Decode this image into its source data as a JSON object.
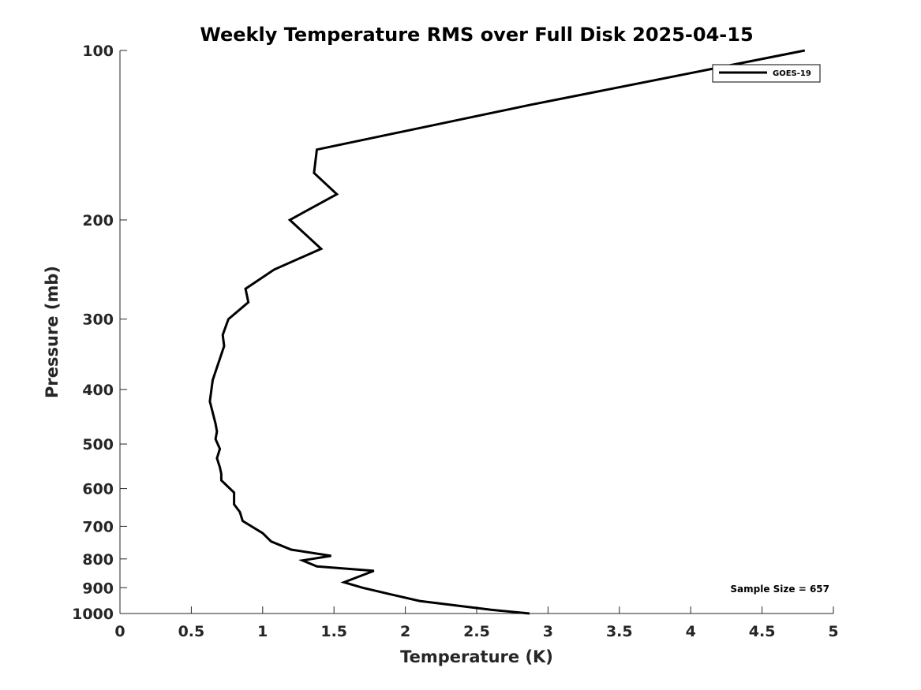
{
  "chart_data": {
    "type": "line",
    "title": "Weekly Temperature RMS over Full Disk 2025-04-15",
    "xlabel": "Temperature (K)",
    "ylabel": "Pressure (mb)",
    "xlim": [
      0,
      5
    ],
    "ylim": [
      100,
      1000
    ],
    "yscale": "log",
    "y_reversed": true,
    "xticks": [
      0,
      0.5,
      1,
      1.5,
      2,
      2.5,
      3,
      3.5,
      4,
      4.5,
      5
    ],
    "xtick_labels": [
      "0",
      "0.5",
      "1",
      "1.5",
      "2",
      "2.5",
      "3",
      "3.5",
      "4",
      "4.5",
      "5"
    ],
    "yticks": [
      100,
      200,
      300,
      400,
      500,
      600,
      700,
      800,
      900,
      1000
    ],
    "ytick_labels": [
      "100",
      "200",
      "300",
      "400",
      "500",
      "600",
      "700",
      "800",
      "900",
      "1000"
    ],
    "grid": false,
    "legend_position": "top-right",
    "series": [
      {
        "name": "GOES-19",
        "color": "#000000",
        "points": [
          [
            4.8,
            100
          ],
          [
            2.87,
            125
          ],
          [
            1.38,
            150
          ],
          [
            1.36,
            165
          ],
          [
            1.52,
            180
          ],
          [
            1.19,
            200
          ],
          [
            1.41,
            225
          ],
          [
            1.08,
            245
          ],
          [
            0.88,
            265
          ],
          [
            0.9,
            280
          ],
          [
            0.76,
            300
          ],
          [
            0.72,
            320
          ],
          [
            0.73,
            335
          ],
          [
            0.65,
            385
          ],
          [
            0.63,
            420
          ],
          [
            0.67,
            460
          ],
          [
            0.68,
            475
          ],
          [
            0.67,
            490
          ],
          [
            0.7,
            510
          ],
          [
            0.68,
            530
          ],
          [
            0.7,
            550
          ],
          [
            0.71,
            565
          ],
          [
            0.71,
            580
          ],
          [
            0.8,
            610
          ],
          [
            0.8,
            640
          ],
          [
            0.84,
            660
          ],
          [
            0.86,
            685
          ],
          [
            1.0,
            720
          ],
          [
            1.06,
            745
          ],
          [
            1.2,
            770
          ],
          [
            1.48,
            790
          ],
          [
            1.28,
            805
          ],
          [
            1.38,
            825
          ],
          [
            1.78,
            840
          ],
          [
            1.57,
            880
          ],
          [
            1.7,
            900
          ],
          [
            1.9,
            925
          ],
          [
            2.1,
            950
          ],
          [
            2.6,
            985
          ],
          [
            2.87,
            1000
          ]
        ]
      }
    ],
    "annotations": [
      {
        "text": "Sample Size = 657"
      }
    ]
  }
}
